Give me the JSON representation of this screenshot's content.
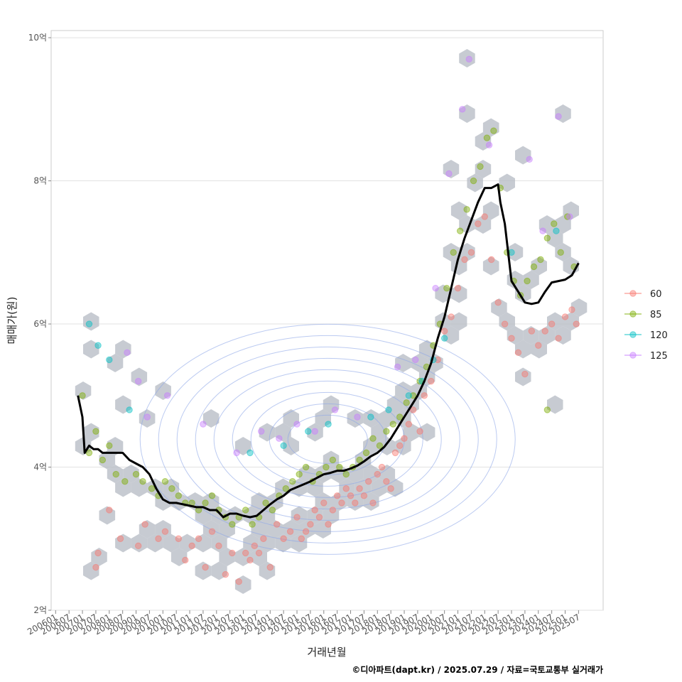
{
  "chart_data": {
    "type": "scatter",
    "title": "",
    "xlabel": "거래년월",
    "ylabel": "매매가(원)",
    "caption": "©디아파트(dapt.kr) / 2025.07.29 / 자료=국토교통부 실거래가",
    "x_range": [
      "2005-11",
      "2026-06"
    ],
    "ylim": [
      2,
      10.1
    ],
    "y_ticks": [
      {
        "value": 2,
        "label": "2억"
      },
      {
        "value": 4,
        "label": "4억"
      },
      {
        "value": 6,
        "label": "6억"
      },
      {
        "value": 8,
        "label": "8억"
      },
      {
        "value": 10,
        "label": "10억"
      }
    ],
    "x_ticks": [
      "200601",
      "200607",
      "200701",
      "200707",
      "200801",
      "200807",
      "200901",
      "200907",
      "201001",
      "201007",
      "201101",
      "201107",
      "201201",
      "201207",
      "201301",
      "201307",
      "201401",
      "201407",
      "201501",
      "201507",
      "201601",
      "201607",
      "201701",
      "201707",
      "201801",
      "201807",
      "201901",
      "201907",
      "202001",
      "202007",
      "202101",
      "202107",
      "202201",
      "202207",
      "202301",
      "202307",
      "202401",
      "202407",
      "202501",
      "202507"
    ],
    "grid": true,
    "legend_position": "right",
    "series": [
      {
        "name": "60",
        "color": "#F8766D",
        "points": [
          [
            "2007-07",
            2.6
          ],
          [
            "2007-08",
            2.8
          ],
          [
            "2008-01",
            3.4
          ],
          [
            "2008-06",
            3.0
          ],
          [
            "2009-02",
            2.9
          ],
          [
            "2009-05",
            3.2
          ],
          [
            "2009-11",
            3.0
          ],
          [
            "2010-02",
            3.1
          ],
          [
            "2010-08",
            3.0
          ],
          [
            "2010-11",
            2.7
          ],
          [
            "2011-02",
            2.9
          ],
          [
            "2011-05",
            3.0
          ],
          [
            "2011-08",
            2.6
          ],
          [
            "2011-11",
            3.1
          ],
          [
            "2012-02",
            2.9
          ],
          [
            "2012-05",
            2.5
          ],
          [
            "2012-08",
            2.8
          ],
          [
            "2012-11",
            2.4
          ],
          [
            "2013-02",
            2.8
          ],
          [
            "2013-04",
            2.7
          ],
          [
            "2013-06",
            2.9
          ],
          [
            "2013-08",
            2.8
          ],
          [
            "2013-10",
            3.0
          ],
          [
            "2014-01",
            2.6
          ],
          [
            "2014-04",
            3.2
          ],
          [
            "2014-07",
            3.0
          ],
          [
            "2014-10",
            3.1
          ],
          [
            "2015-01",
            3.3
          ],
          [
            "2015-03",
            3.0
          ],
          [
            "2015-05",
            3.1
          ],
          [
            "2015-07",
            3.2
          ],
          [
            "2015-09",
            3.4
          ],
          [
            "2015-11",
            3.3
          ],
          [
            "2016-01",
            3.5
          ],
          [
            "2016-03",
            3.2
          ],
          [
            "2016-05",
            3.4
          ],
          [
            "2016-07",
            3.6
          ],
          [
            "2016-09",
            3.5
          ],
          [
            "2016-11",
            3.7
          ],
          [
            "2017-01",
            3.6
          ],
          [
            "2017-03",
            3.5
          ],
          [
            "2017-05",
            3.7
          ],
          [
            "2017-07",
            3.6
          ],
          [
            "2017-09",
            3.8
          ],
          [
            "2017-11",
            3.5
          ],
          [
            "2018-01",
            3.9
          ],
          [
            "2018-03",
            4.0
          ],
          [
            "2018-05",
            3.8
          ],
          [
            "2018-07",
            3.7
          ],
          [
            "2018-09",
            4.2
          ],
          [
            "2018-11",
            4.3
          ],
          [
            "2019-01",
            4.4
          ],
          [
            "2019-03",
            4.6
          ],
          [
            "2019-05",
            4.8
          ],
          [
            "2019-08",
            4.5
          ],
          [
            "2019-10",
            5.0
          ],
          [
            "2020-01",
            5.2
          ],
          [
            "2020-04",
            5.5
          ],
          [
            "2020-07",
            5.9
          ],
          [
            "2020-10",
            6.1
          ],
          [
            "2021-01",
            6.5
          ],
          [
            "2021-04",
            6.9
          ],
          [
            "2021-07",
            7.0
          ],
          [
            "2021-10",
            7.4
          ],
          [
            "2022-01",
            7.5
          ],
          [
            "2022-04",
            6.9
          ],
          [
            "2022-07",
            6.3
          ],
          [
            "2022-10",
            6.0
          ],
          [
            "2023-01",
            5.8
          ],
          [
            "2023-04",
            5.6
          ],
          [
            "2023-07",
            5.3
          ],
          [
            "2023-10",
            5.9
          ],
          [
            "2024-01",
            5.7
          ],
          [
            "2024-04",
            5.9
          ],
          [
            "2024-07",
            6.0
          ],
          [
            "2024-10",
            5.8
          ],
          [
            "2025-01",
            6.1
          ],
          [
            "2025-04",
            6.2
          ],
          [
            "2025-06",
            6.0
          ]
        ]
      },
      {
        "name": "85",
        "color": "#7CAE00",
        "points": [
          [
            "2007-01",
            5.0
          ],
          [
            "2007-04",
            4.2
          ],
          [
            "2007-07",
            4.5
          ],
          [
            "2007-10",
            4.1
          ],
          [
            "2008-01",
            4.3
          ],
          [
            "2008-04",
            3.9
          ],
          [
            "2008-08",
            3.8
          ],
          [
            "2009-01",
            3.9
          ],
          [
            "2009-04",
            3.8
          ],
          [
            "2009-08",
            3.7
          ],
          [
            "2009-11",
            3.6
          ],
          [
            "2010-02",
            3.8
          ],
          [
            "2010-05",
            3.7
          ],
          [
            "2010-08",
            3.6
          ],
          [
            "2010-11",
            3.5
          ],
          [
            "2011-02",
            3.5
          ],
          [
            "2011-05",
            3.4
          ],
          [
            "2011-08",
            3.5
          ],
          [
            "2011-11",
            3.6
          ],
          [
            "2012-02",
            3.4
          ],
          [
            "2012-05",
            3.3
          ],
          [
            "2012-08",
            3.2
          ],
          [
            "2012-11",
            3.3
          ],
          [
            "2013-02",
            3.4
          ],
          [
            "2013-05",
            3.2
          ],
          [
            "2013-08",
            3.3
          ],
          [
            "2013-11",
            3.5
          ],
          [
            "2014-02",
            3.4
          ],
          [
            "2014-05",
            3.6
          ],
          [
            "2014-08",
            3.7
          ],
          [
            "2014-11",
            3.8
          ],
          [
            "2015-02",
            3.9
          ],
          [
            "2015-05",
            4.0
          ],
          [
            "2015-08",
            3.8
          ],
          [
            "2015-11",
            3.9
          ],
          [
            "2016-02",
            4.0
          ],
          [
            "2016-05",
            4.1
          ],
          [
            "2016-08",
            4.0
          ],
          [
            "2016-11",
            3.9
          ],
          [
            "2017-02",
            4.0
          ],
          [
            "2017-05",
            4.1
          ],
          [
            "2017-08",
            4.2
          ],
          [
            "2017-11",
            4.4
          ],
          [
            "2018-02",
            4.3
          ],
          [
            "2018-05",
            4.5
          ],
          [
            "2018-08",
            4.6
          ],
          [
            "2018-11",
            4.7
          ],
          [
            "2019-02",
            4.9
          ],
          [
            "2019-05",
            5.0
          ],
          [
            "2019-08",
            5.2
          ],
          [
            "2019-11",
            5.4
          ],
          [
            "2020-02",
            5.7
          ],
          [
            "2020-05",
            6.0
          ],
          [
            "2020-08",
            6.5
          ],
          [
            "2020-11",
            7.0
          ],
          [
            "2021-02",
            7.3
          ],
          [
            "2021-05",
            7.6
          ],
          [
            "2021-08",
            8.0
          ],
          [
            "2021-11",
            8.2
          ],
          [
            "2022-02",
            8.6
          ],
          [
            "2022-05",
            8.7
          ],
          [
            "2022-08",
            7.9
          ],
          [
            "2022-11",
            7.0
          ],
          [
            "2023-02",
            6.6
          ],
          [
            "2023-05",
            6.4
          ],
          [
            "2023-08",
            6.6
          ],
          [
            "2023-11",
            6.8
          ],
          [
            "2024-02",
            6.9
          ],
          [
            "2024-05",
            7.2
          ],
          [
            "2024-08",
            7.4
          ],
          [
            "2024-11",
            7.0
          ],
          [
            "2025-02",
            7.5
          ],
          [
            "2025-05",
            6.8
          ],
          [
            "2024-05",
            4.8
          ]
        ]
      },
      {
        "name": "120",
        "color": "#00BFC4",
        "points": [
          [
            "2007-04",
            6.0
          ],
          [
            "2007-08",
            5.7
          ],
          [
            "2008-01",
            5.5
          ],
          [
            "2008-10",
            4.8
          ],
          [
            "2013-04",
            4.2
          ],
          [
            "2014-07",
            4.3
          ],
          [
            "2015-06",
            4.5
          ],
          [
            "2016-03",
            4.6
          ],
          [
            "2017-10",
            4.7
          ],
          [
            "2018-06",
            4.8
          ],
          [
            "2019-03",
            5.0
          ],
          [
            "2019-09",
            5.2
          ],
          [
            "2020-02",
            5.5
          ],
          [
            "2020-07",
            5.8
          ],
          [
            "2023-01",
            7.0
          ],
          [
            "2024-09",
            7.3
          ]
        ]
      },
      {
        "name": "125",
        "color": "#C77CFF",
        "points": [
          [
            "2008-09",
            5.6
          ],
          [
            "2009-02",
            5.2
          ],
          [
            "2009-06",
            4.7
          ],
          [
            "2010-03",
            5.0
          ],
          [
            "2011-07",
            4.6
          ],
          [
            "2012-10",
            4.2
          ],
          [
            "2013-09",
            4.5
          ],
          [
            "2014-05",
            4.4
          ],
          [
            "2015-01",
            4.6
          ],
          [
            "2015-09",
            4.5
          ],
          [
            "2016-06",
            4.8
          ],
          [
            "2017-04",
            4.7
          ],
          [
            "2018-10",
            5.4
          ],
          [
            "2019-06",
            5.5
          ],
          [
            "2020-03",
            6.5
          ],
          [
            "2020-09",
            8.1
          ],
          [
            "2021-03",
            9.0
          ],
          [
            "2021-06",
            9.7
          ],
          [
            "2022-03",
            8.5
          ],
          [
            "2023-09",
            8.3
          ],
          [
            "2024-03",
            7.3
          ],
          [
            "2024-10",
            8.9
          ],
          [
            "2025-03",
            7.5
          ]
        ]
      }
    ],
    "median_line": {
      "color": "#000000",
      "points": [
        [
          "2006-11",
          5.0
        ],
        [
          "2007-01",
          4.7
        ],
        [
          "2007-02",
          4.2
        ],
        [
          "2007-04",
          4.3
        ],
        [
          "2007-06",
          4.25
        ],
        [
          "2007-08",
          4.25
        ],
        [
          "2007-10",
          4.2
        ],
        [
          "2008-01",
          4.2
        ],
        [
          "2008-04",
          4.2
        ],
        [
          "2008-07",
          4.2
        ],
        [
          "2008-10",
          4.1
        ],
        [
          "2009-01",
          4.05
        ],
        [
          "2009-04",
          4.0
        ],
        [
          "2009-07",
          3.9
        ],
        [
          "2009-10",
          3.7
        ],
        [
          "2010-01",
          3.55
        ],
        [
          "2010-04",
          3.5
        ],
        [
          "2010-07",
          3.5
        ],
        [
          "2010-10",
          3.48
        ],
        [
          "2011-01",
          3.46
        ],
        [
          "2011-04",
          3.44
        ],
        [
          "2011-07",
          3.44
        ],
        [
          "2011-10",
          3.4
        ],
        [
          "2012-01",
          3.4
        ],
        [
          "2012-04",
          3.3
        ],
        [
          "2012-07",
          3.35
        ],
        [
          "2012-10",
          3.35
        ],
        [
          "2013-01",
          3.32
        ],
        [
          "2013-04",
          3.3
        ],
        [
          "2013-07",
          3.32
        ],
        [
          "2013-10",
          3.4
        ],
        [
          "2014-01",
          3.48
        ],
        [
          "2014-04",
          3.55
        ],
        [
          "2014-07",
          3.6
        ],
        [
          "2014-10",
          3.68
        ],
        [
          "2015-01",
          3.72
        ],
        [
          "2015-04",
          3.76
        ],
        [
          "2015-07",
          3.8
        ],
        [
          "2015-10",
          3.85
        ],
        [
          "2016-01",
          3.9
        ],
        [
          "2016-04",
          3.92
        ],
        [
          "2016-07",
          3.95
        ],
        [
          "2016-10",
          3.95
        ],
        [
          "2017-01",
          3.98
        ],
        [
          "2017-04",
          4.02
        ],
        [
          "2017-07",
          4.08
        ],
        [
          "2017-10",
          4.15
        ],
        [
          "2018-01",
          4.2
        ],
        [
          "2018-04",
          4.28
        ],
        [
          "2018-07",
          4.4
        ],
        [
          "2018-10",
          4.55
        ],
        [
          "2019-01",
          4.7
        ],
        [
          "2019-04",
          4.85
        ],
        [
          "2019-07",
          5.0
        ],
        [
          "2019-10",
          5.2
        ],
        [
          "2020-01",
          5.45
        ],
        [
          "2020-04",
          5.8
        ],
        [
          "2020-07",
          6.1
        ],
        [
          "2020-10",
          6.5
        ],
        [
          "2021-01",
          6.9
        ],
        [
          "2021-04",
          7.2
        ],
        [
          "2021-07",
          7.45
        ],
        [
          "2021-10",
          7.7
        ],
        [
          "2022-01",
          7.9
        ],
        [
          "2022-04",
          7.9
        ],
        [
          "2022-07",
          7.95
        ],
        [
          "2022-08",
          7.7
        ],
        [
          "2022-10",
          7.4
        ],
        [
          "2023-01",
          6.6
        ],
        [
          "2023-04",
          6.45
        ],
        [
          "2023-07",
          6.3
        ],
        [
          "2023-10",
          6.28
        ],
        [
          "2024-01",
          6.3
        ],
        [
          "2024-04",
          6.45
        ],
        [
          "2024-07",
          6.58
        ],
        [
          "2024-10",
          6.6
        ],
        [
          "2025-01",
          6.62
        ],
        [
          "2025-04",
          6.68
        ],
        [
          "2025-07",
          6.85
        ]
      ]
    }
  }
}
